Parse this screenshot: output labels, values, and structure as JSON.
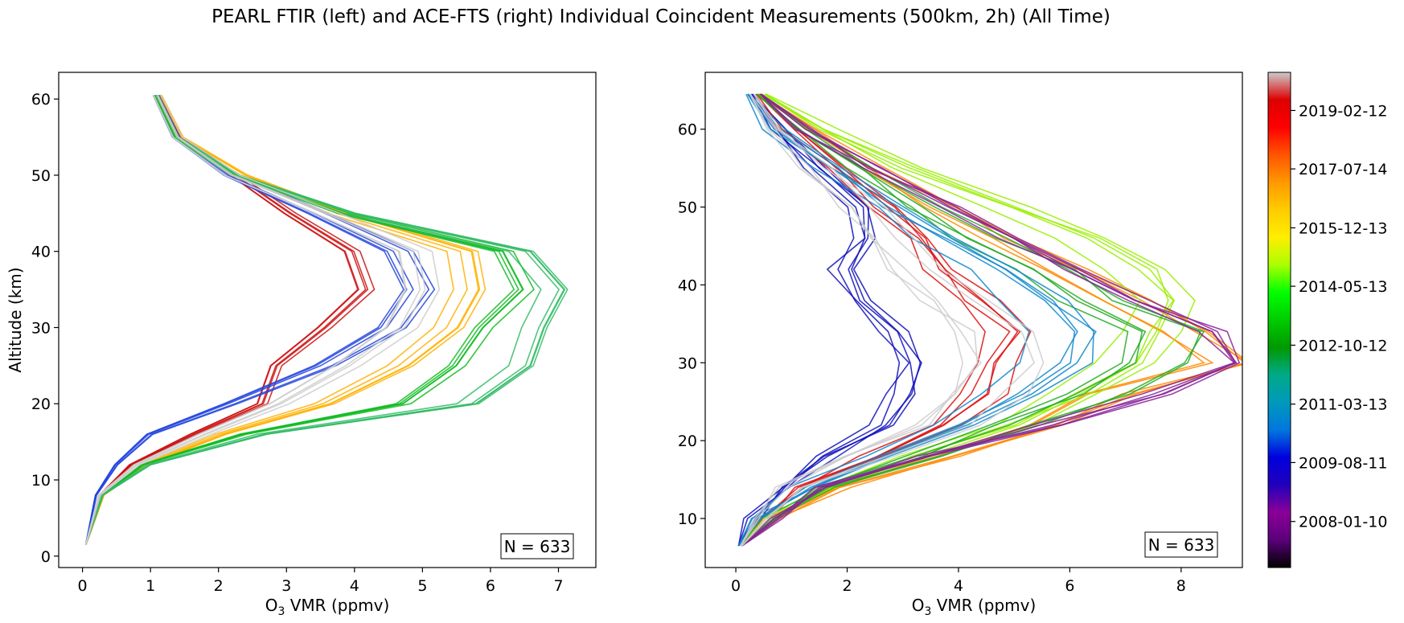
{
  "figure": {
    "title": "PEARL FTIR (left) and ACE-FTS (right) Individual Coincident Measurements (500km, 2h) (All Time)"
  },
  "chart_data": [
    {
      "type": "line",
      "panel": "left",
      "xlabel_main": "O",
      "xlabel_sub": "3",
      "xlabel_rest": " VMR (ppmv)",
      "ylabel": "Altitude (km)",
      "xlim": [
        -0.35,
        7.55
      ],
      "ylim": [
        -1.5,
        63.5
      ],
      "xticks": [
        0,
        1,
        2,
        3,
        4,
        5,
        6,
        7
      ],
      "yticks": [
        0,
        10,
        20,
        30,
        40,
        50,
        60
      ],
      "annotation": "N = 633",
      "grid": false,
      "representative_profiles": [
        {
          "color": "#cc1111",
          "alt": [
            1.5,
            8,
            12,
            16,
            20,
            25,
            30,
            35,
            40,
            45,
            50,
            55,
            60.5
          ],
          "vmr": [
            0.05,
            0.25,
            0.7,
            1.6,
            2.6,
            2.8,
            3.5,
            4.1,
            3.9,
            3.0,
            2.2,
            1.4,
            1.1
          ]
        },
        {
          "color": "#2244dd",
          "alt": [
            1.5,
            8,
            12,
            16,
            20,
            25,
            30,
            35,
            40,
            45,
            50,
            55,
            60.5
          ],
          "vmr": [
            0.05,
            0.2,
            0.5,
            1.0,
            2.2,
            3.6,
            4.6,
            5.0,
            4.7,
            3.5,
            2.2,
            1.4,
            1.1
          ]
        },
        {
          "color": "#ffb000",
          "alt": [
            1.5,
            8,
            12,
            16,
            20,
            25,
            30,
            35,
            40,
            45,
            50,
            55,
            60.5
          ],
          "vmr": [
            0.05,
            0.3,
            0.9,
            2.0,
            3.5,
            4.6,
            5.3,
            5.6,
            5.5,
            3.7,
            2.3,
            1.4,
            1.1
          ]
        },
        {
          "color": "#11bb22",
          "alt": [
            1.5,
            8,
            12,
            16,
            20,
            25,
            30,
            35,
            40,
            45,
            50,
            55,
            60.5
          ],
          "vmr": [
            0.05,
            0.3,
            0.9,
            2.4,
            4.8,
            5.6,
            6.0,
            6.6,
            6.3,
            3.9,
            2.3,
            1.4,
            1.1
          ]
        },
        {
          "color": "#33bb66",
          "alt": [
            1.5,
            8,
            12,
            16,
            20,
            25,
            30,
            35,
            40,
            45,
            50,
            55,
            60.5
          ],
          "vmr": [
            0.05,
            0.3,
            1.0,
            2.7,
            5.8,
            6.6,
            6.8,
            7.1,
            6.6,
            4.0,
            2.3,
            1.4,
            1.1
          ]
        },
        {
          "color": "#cccccc",
          "alt": [
            1.5,
            8,
            12,
            16,
            20,
            25,
            30,
            35,
            40,
            45,
            50,
            55,
            60.5
          ],
          "vmr": [
            0.05,
            0.25,
            0.8,
            1.8,
            2.9,
            3.9,
            4.7,
            5.0,
            4.9,
            3.6,
            2.2,
            1.4,
            1.1
          ]
        }
      ]
    },
    {
      "type": "line",
      "panel": "right",
      "xlabel_main": "O",
      "xlabel_sub": "3",
      "xlabel_rest": " VMR (ppmv)",
      "ylabel": "",
      "xlim": [
        -0.55,
        9.1
      ],
      "ylim": [
        3.7,
        67.3
      ],
      "xticks": [
        0,
        2,
        4,
        6,
        8
      ],
      "yticks": [
        10,
        20,
        30,
        40,
        50,
        60
      ],
      "annotation": "N = 633",
      "grid": false,
      "representative_profiles": [
        {
          "color": "#1111bb",
          "alt": [
            6.5,
            10,
            14,
            18,
            22,
            26,
            30,
            34,
            38,
            42,
            46,
            50,
            55,
            60,
            64.5
          ],
          "vmr": [
            0.05,
            0.3,
            0.9,
            1.8,
            2.8,
            3.2,
            3.4,
            3.0,
            2.4,
            2.0,
            2.5,
            2.3,
            1.5,
            0.8,
            0.3
          ]
        },
        {
          "color": "#dd1111",
          "alt": [
            6.5,
            10,
            14,
            18,
            22,
            26,
            30,
            34,
            38,
            42,
            46,
            50,
            55,
            60,
            64.5
          ],
          "vmr": [
            0.1,
            0.5,
            1.2,
            2.6,
            4.0,
            4.6,
            4.9,
            5.2,
            4.5,
            3.8,
            3.4,
            2.8,
            1.9,
            1.0,
            0.4
          ]
        },
        {
          "color": "#ff8800",
          "alt": [
            6.5,
            10,
            14,
            18,
            22,
            26,
            30,
            34,
            38,
            42,
            46,
            50,
            55,
            60,
            64.5
          ],
          "vmr": [
            0.1,
            0.7,
            1.8,
            3.6,
            5.3,
            6.6,
            8.6,
            7.8,
            6.8,
            5.8,
            4.6,
            3.6,
            2.4,
            1.2,
            0.4
          ]
        },
        {
          "color": "#99ee00",
          "alt": [
            6.5,
            10,
            14,
            18,
            22,
            26,
            30,
            34,
            38,
            42,
            46,
            50,
            55,
            60,
            64.5
          ],
          "vmr": [
            0.1,
            0.6,
            1.6,
            3.2,
            4.8,
            6.0,
            7.0,
            7.4,
            7.6,
            7.2,
            6.2,
            4.8,
            3.0,
            1.6,
            0.5
          ]
        },
        {
          "color": "#22aa22",
          "alt": [
            6.5,
            10,
            14,
            18,
            22,
            26,
            30,
            34,
            38,
            42,
            46,
            50,
            55,
            60,
            64.5
          ],
          "vmr": [
            0.1,
            0.6,
            1.6,
            3.4,
            5.0,
            6.4,
            7.4,
            7.6,
            6.4,
            5.5,
            4.4,
            3.4,
            2.2,
            1.1,
            0.4
          ]
        },
        {
          "color": "#1188cc",
          "alt": [
            6.5,
            10,
            14,
            18,
            22,
            26,
            30,
            34,
            38,
            42,
            46,
            50,
            55,
            60,
            64.5
          ],
          "vmr": [
            0.05,
            0.4,
            1.2,
            2.4,
            3.8,
            4.8,
            5.6,
            5.8,
            5.2,
            4.4,
            3.4,
            2.6,
            1.6,
            0.7,
            0.2
          ]
        },
        {
          "color": "#882299",
          "alt": [
            6.5,
            10,
            14,
            18,
            22,
            26,
            30,
            34,
            38,
            42,
            46,
            50,
            55,
            60,
            64.5
          ],
          "vmr": [
            0.1,
            0.6,
            1.4,
            3.0,
            5.0,
            6.8,
            8.0,
            7.6,
            6.4,
            5.4,
            4.4,
            3.4,
            2.2,
            1.1,
            0.4
          ]
        },
        {
          "color": "#cccccc",
          "alt": [
            6.5,
            10,
            14,
            18,
            22,
            26,
            30,
            34,
            38,
            42,
            46,
            50,
            55,
            60,
            64.5
          ],
          "vmr": [
            0.1,
            0.4,
            1.0,
            2.4,
            3.8,
            4.6,
            4.9,
            4.8,
            4.0,
            3.4,
            2.8,
            2.3,
            1.5,
            0.8,
            0.3
          ]
        }
      ]
    },
    {
      "type": "colorbar",
      "tick_labels": [
        "2008-01-10",
        "2009-08-11",
        "2011-03-13",
        "2012-10-12",
        "2014-05-13",
        "2015-12-13",
        "2017-07-14",
        "2019-02-12"
      ],
      "tick_fractions": [
        0.093,
        0.212,
        0.33,
        0.449,
        0.568,
        0.686,
        0.805,
        0.923
      ],
      "colormap_stops": [
        "#000000",
        "#5a007a",
        "#8a0099",
        "#2200bb",
        "#0000dd",
        "#0077dd",
        "#0099bb",
        "#00aa88",
        "#009900",
        "#00cc00",
        "#00ff00",
        "#aaff00",
        "#ffee00",
        "#ffcc00",
        "#ff9900",
        "#ff5500",
        "#ff0000",
        "#dd0000",
        "#cccccc"
      ]
    }
  ]
}
